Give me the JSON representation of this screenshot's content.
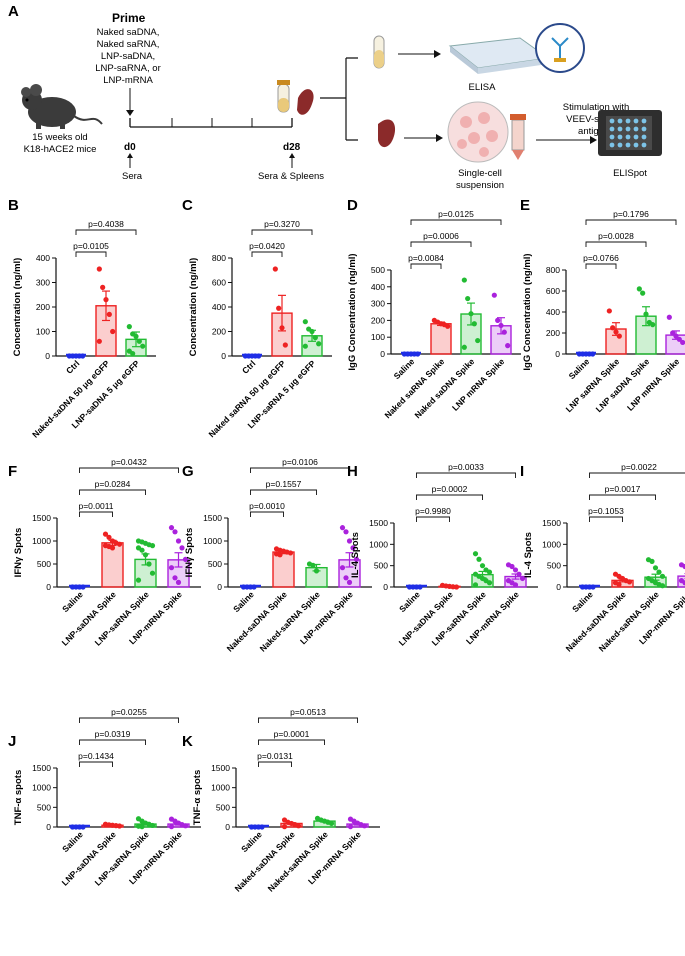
{
  "schematic": {
    "panel_letter": "A",
    "prime_title": "Prime",
    "prime_groups": [
      "Naked saDNA,",
      "Naked saRNA,",
      "LNP-saDNA,",
      "LNP-saRNA, or",
      "LNP-mRNA"
    ],
    "mice_line1": "15 weeks old",
    "mice_line2": "K18-hACE2 mice",
    "d0_label": "d0",
    "d28_label": "d28",
    "sera_label": "Sera",
    "sera_spleens_label": "Sera & Spleens",
    "elisa_label": "ELISA",
    "single_cell_line1": "Single-cell",
    "single_cell_line2": "suspension",
    "stim_line1": "Stimulation with",
    "stim_line2": "VEEV-specific",
    "stim_line3": "antigens",
    "elispot_label": "ELISpot"
  },
  "colors": {
    "blue": "#1f2ee6",
    "red": "#ee2222",
    "green": "#22bb33",
    "purple": "#aa22dd"
  },
  "chart_data": [
    {
      "panel": "B",
      "type": "bar",
      "ylabel": "Concentration (ng/ml)",
      "ylim": [
        0,
        400
      ],
      "yticks": [
        0,
        100,
        200,
        300,
        400
      ],
      "categories": [
        "Ctrl",
        "Naked-saDNA 50 μg eGFP",
        "LNP-saDNA 5 μg eGFP"
      ],
      "colors": [
        "blue",
        "red",
        "green"
      ],
      "values": [
        0,
        205,
        68
      ],
      "errors": [
        0,
        60,
        30
      ],
      "points": [
        [
          0,
          0,
          0,
          0,
          0
        ],
        [
          355,
          280,
          230,
          170,
          100,
          60
        ],
        [
          120,
          90,
          80,
          60,
          40,
          20,
          10
        ]
      ],
      "comparisons": [
        {
          "groups": [
            0,
            1
          ],
          "label": "p=0.0105"
        },
        {
          "groups": [
            0,
            2
          ],
          "label": "p=0.4038"
        }
      ]
    },
    {
      "panel": "C",
      "type": "bar",
      "ylabel": "Concentration (ng/ml)",
      "ylim": [
        0,
        800
      ],
      "yticks": [
        0,
        200,
        400,
        600,
        800
      ],
      "categories": [
        "Ctrl",
        "Naked saRNA 50 μg eGFP",
        "LNP-saRNA 5 μg eGFP"
      ],
      "colors": [
        "blue",
        "red",
        "green"
      ],
      "values": [
        0,
        350,
        165
      ],
      "errors": [
        0,
        145,
        45
      ],
      "points": [
        [
          0,
          0,
          0,
          0,
          0
        ],
        [
          710,
          390,
          230,
          90
        ],
        [
          280,
          220,
          200,
          150,
          100,
          80
        ]
      ],
      "comparisons": [
        {
          "groups": [
            0,
            1
          ],
          "label": "p=0.0420"
        },
        {
          "groups": [
            0,
            2
          ],
          "label": "p=0.3270"
        }
      ]
    },
    {
      "panel": "D",
      "type": "bar",
      "ylabel": "IgG Concentration (ng/ml)",
      "ylim": [
        0,
        500
      ],
      "yticks": [
        0,
        100,
        200,
        300,
        400,
        500
      ],
      "categories": [
        "Saline",
        "Naked saRNA Spike",
        "Naked saDNA Spike",
        "LNP mRNA Spike"
      ],
      "colors": [
        "blue",
        "red",
        "green",
        "purple"
      ],
      "values": [
        0,
        180,
        238,
        168
      ],
      "errors": [
        0,
        10,
        65,
        48
      ],
      "points": [
        [
          0,
          0,
          0,
          0,
          0
        ],
        [
          200,
          190,
          180,
          175,
          165
        ],
        [
          440,
          330,
          240,
          180,
          80,
          40
        ],
        [
          350,
          200,
          170,
          130,
          50
        ]
      ],
      "comparisons": [
        {
          "groups": [
            0,
            1
          ],
          "label": "p=0.0084"
        },
        {
          "groups": [
            0,
            2
          ],
          "label": "p=0.0006"
        },
        {
          "groups": [
            0,
            3
          ],
          "label": "p=0.0125"
        }
      ]
    },
    {
      "panel": "E",
      "type": "bar",
      "ylabel": "IgG Concentration (ng/ml)",
      "ylim": [
        0,
        800
      ],
      "yticks": [
        0,
        200,
        400,
        600,
        800
      ],
      "categories": [
        "Saline",
        "LNP saRNA Spike",
        "LNP saDNA Spike",
        "LNP mRNA Spike"
      ],
      "colors": [
        "blue",
        "red",
        "green",
        "purple"
      ],
      "values": [
        0,
        238,
        360,
        180
      ],
      "errors": [
        0,
        60,
        90,
        40
      ],
      "points": [
        [
          0,
          0,
          0,
          0,
          0
        ],
        [
          410,
          250,
          210,
          170
        ],
        [
          620,
          580,
          380,
          300,
          280
        ],
        [
          350,
          200,
          170,
          140,
          110
        ]
      ],
      "comparisons": [
        {
          "groups": [
            0,
            1
          ],
          "label": "p=0.0766"
        },
        {
          "groups": [
            0,
            2
          ],
          "label": "p=0.0028"
        },
        {
          "groups": [
            0,
            3
          ],
          "label": "p=0.1796"
        }
      ]
    },
    {
      "panel": "F",
      "type": "bar",
      "ylabel": "IFNγ Spots",
      "ylim": [
        0,
        1500
      ],
      "yticks": [
        0,
        500,
        1000,
        1500
      ],
      "categories": [
        "Saline",
        "LNP-saDNA Spike",
        "LNP-saRNA Spike",
        "LNP-mRNA Spike"
      ],
      "colors": [
        "blue",
        "red",
        "green",
        "purple"
      ],
      "values": [
        0,
        960,
        600,
        590
      ],
      "errors": [
        0,
        55,
        120,
        155
      ],
      "points": [
        [
          0,
          0,
          0,
          0
        ],
        [
          1150,
          1080,
          1000,
          960,
          930,
          900,
          880,
          850
        ],
        [
          1000,
          980,
          950,
          920,
          900,
          850,
          800,
          700,
          500,
          300,
          150
        ],
        [
          1290,
          1200,
          1000,
          850,
          600,
          420,
          200,
          100
        ]
      ],
      "comparisons": [
        {
          "groups": [
            0,
            1
          ],
          "label": "p=0.0011"
        },
        {
          "groups": [
            0,
            2
          ],
          "label": "p=0.0284"
        },
        {
          "groups": [
            0,
            3
          ],
          "label": "p=0.0432"
        }
      ]
    },
    {
      "panel": "G",
      "type": "bar",
      "ylabel": "IFNγ Spots",
      "ylim": [
        0,
        1500
      ],
      "yticks": [
        0,
        500,
        1000,
        1500
      ],
      "categories": [
        "Saline",
        "Naked-saDNA Spike",
        "Naked-saRNA Spike",
        "LNP-mRNA Spike"
      ],
      "colors": [
        "blue",
        "red",
        "green",
        "purple"
      ],
      "values": [
        0,
        760,
        420,
        590
      ],
      "errors": [
        0,
        35,
        70,
        155
      ],
      "points": [
        [
          0,
          0,
          0,
          0
        ],
        [
          830,
          800,
          780,
          760,
          740,
          720,
          700
        ],
        [
          500,
          470,
          350
        ],
        [
          1290,
          1200,
          1000,
          850,
          600,
          420,
          200,
          100
        ]
      ],
      "comparisons": [
        {
          "groups": [
            0,
            1
          ],
          "label": "p=0.0010"
        },
        {
          "groups": [
            0,
            2
          ],
          "label": "p=0.1557"
        },
        {
          "groups": [
            0,
            3
          ],
          "label": "p=0.0106"
        }
      ]
    },
    {
      "panel": "H",
      "type": "bar",
      "ylabel": "IL-4 Spots",
      "ylim": [
        0,
        1500
      ],
      "yticks": [
        0,
        500,
        1000,
        1500
      ],
      "categories": [
        "Saline",
        "LNP-saDNA Spike",
        "LNP-saRNA Spike",
        "LNP-mRNA Spike"
      ],
      "colors": [
        "blue",
        "red",
        "green",
        "purple"
      ],
      "values": [
        0,
        15,
        290,
        245
      ],
      "errors": [
        0,
        8,
        75,
        60
      ],
      "points": [
        [
          0,
          0,
          0,
          0
        ],
        [
          40,
          25,
          15,
          5,
          0
        ],
        [
          780,
          650,
          500,
          400,
          350,
          300,
          250,
          200,
          150,
          100,
          50
        ],
        [
          520,
          480,
          400,
          300,
          200,
          150,
          100,
          50
        ]
      ],
      "comparisons": [
        {
          "groups": [
            0,
            1
          ],
          "label": "p=0.9980"
        },
        {
          "groups": [
            0,
            2
          ],
          "label": "p=0.0002"
        },
        {
          "groups": [
            0,
            3
          ],
          "label": "p=0.0033"
        }
      ]
    },
    {
      "panel": "I",
      "type": "bar",
      "ylabel": "IL-4 Spots",
      "ylim": [
        0,
        1500
      ],
      "yticks": [
        0,
        500,
        1000,
        1500
      ],
      "categories": [
        "Saline",
        "Naked-saDNA Spike",
        "Naked-saRNA Spike",
        "LNP-mRNA Spike"
      ],
      "colors": [
        "blue",
        "red",
        "green",
        "purple"
      ],
      "values": [
        0,
        155,
        230,
        255
      ],
      "errors": [
        0,
        35,
        70,
        60
      ],
      "points": [
        [
          0,
          0,
          0,
          0
        ],
        [
          300,
          250,
          200,
          150,
          120,
          100,
          60
        ],
        [
          640,
          600,
          450,
          350,
          250,
          200,
          150,
          100,
          60,
          30
        ],
        [
          520,
          480,
          400,
          300,
          200,
          150,
          100,
          50
        ]
      ],
      "comparisons": [
        {
          "groups": [
            0,
            1
          ],
          "label": "p=0.1053"
        },
        {
          "groups": [
            0,
            2
          ],
          "label": "p=0.0017"
        },
        {
          "groups": [
            0,
            3
          ],
          "label": "p=0.0022"
        }
      ]
    },
    {
      "panel": "J",
      "type": "bar",
      "ylabel": "TNF-α spots",
      "ylim": [
        0,
        1500
      ],
      "yticks": [
        0,
        500,
        1000,
        1500
      ],
      "categories": [
        "Saline",
        "LNP-saDNA Spike",
        "LNP-saRNA Spike",
        "LNP-mRNA Spike"
      ],
      "colors": [
        "blue",
        "red",
        "green",
        "purple"
      ],
      "values": [
        0,
        45,
        75,
        75
      ],
      "errors": [
        0,
        10,
        25,
        25
      ],
      "points": [
        [
          0,
          0,
          0,
          0
        ],
        [
          70,
          55,
          45,
          35,
          25
        ],
        [
          210,
          150,
          100,
          70,
          40,
          20,
          10
        ],
        [
          200,
          150,
          100,
          60,
          30,
          10
        ]
      ],
      "comparisons": [
        {
          "groups": [
            0,
            1
          ],
          "label": "p=0.1434"
        },
        {
          "groups": [
            0,
            2
          ],
          "label": "p=0.0319"
        },
        {
          "groups": [
            0,
            3
          ],
          "label": "p=0.0255"
        }
      ]
    },
    {
      "panel": "K",
      "type": "bar",
      "ylabel": "TNF-α spots",
      "ylim": [
        0,
        1500
      ],
      "yticks": [
        0,
        500,
        1000,
        1500
      ],
      "categories": [
        "Saline",
        "Naked-saDNA Spike",
        "Naked-saRNA Spike",
        "LNP-mRNA Spike"
      ],
      "colors": [
        "blue",
        "red",
        "green",
        "purple"
      ],
      "values": [
        0,
        90,
        150,
        75
      ],
      "errors": [
        0,
        20,
        25,
        25
      ],
      "points": [
        [
          0,
          0,
          0,
          0
        ],
        [
          180,
          120,
          90,
          60,
          30,
          10
        ],
        [
          220,
          180,
          150,
          120,
          90
        ],
        [
          200,
          150,
          100,
          60,
          30,
          10
        ]
      ],
      "comparisons": [
        {
          "groups": [
            0,
            1
          ],
          "label": "p=0.0131"
        },
        {
          "groups": [
            0,
            2
          ],
          "label": "p=0.0001"
        },
        {
          "groups": [
            0,
            3
          ],
          "label": "p=0.0513"
        }
      ]
    }
  ]
}
